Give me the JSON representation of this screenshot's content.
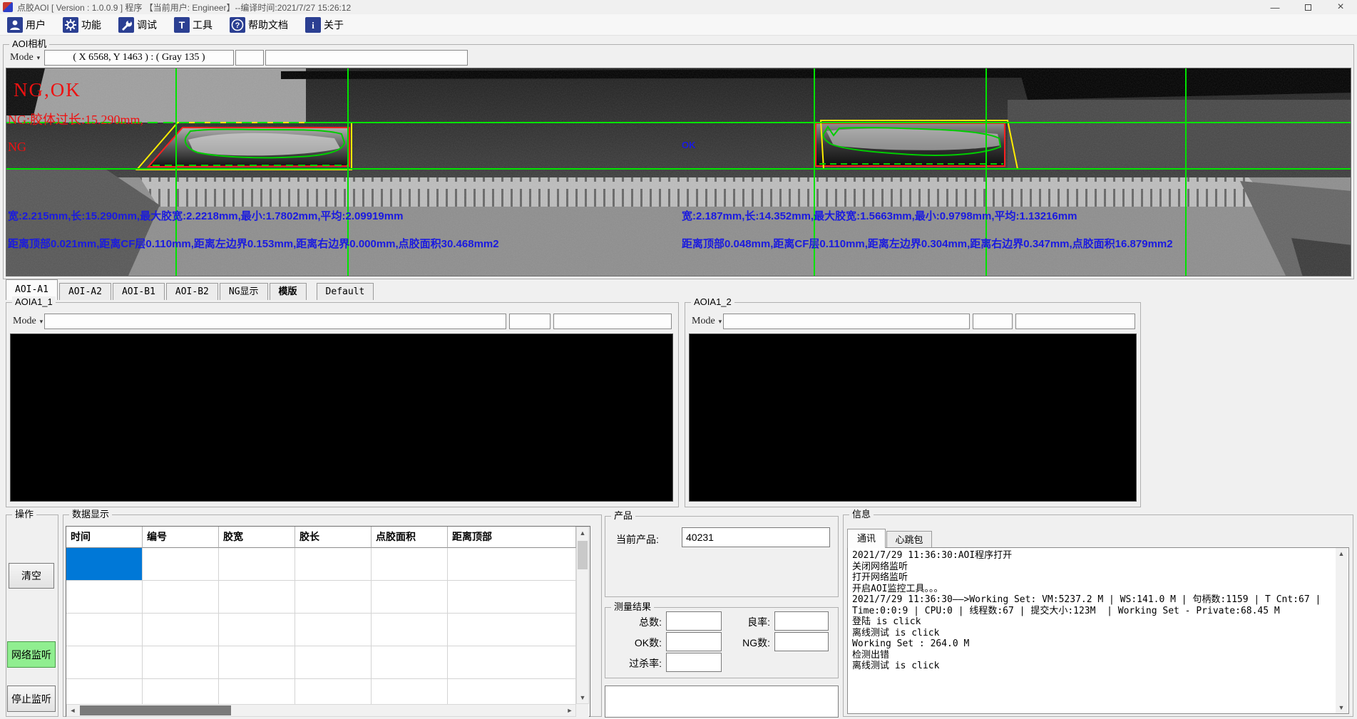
{
  "window": {
    "title": "点胶AOI [ Version : 1.0.0.9 ] 程序 【当前用户: Engineer】--编译时间:2021/7/27 15:26:12",
    "minimize_glyph": "—",
    "close_glyph": "×"
  },
  "icons": {
    "dropdown": "▾",
    "scroll_up": "▲",
    "scroll_down": "▼",
    "scroll_left": "◄",
    "scroll_right": "►"
  },
  "toolbar": {
    "items": [
      {
        "label": "用户",
        "icon": "user-icon"
      },
      {
        "label": "功能",
        "icon": "gear-icon"
      },
      {
        "label": "调试",
        "icon": "wrench-icon"
      },
      {
        "label": "工具",
        "icon": "tool-icon"
      },
      {
        "label": "帮助文档",
        "icon": "help-icon"
      },
      {
        "label": "关于",
        "icon": "about-icon"
      }
    ]
  },
  "camera": {
    "group_label": "AOI相机",
    "mode_label": "Mode",
    "coords_display": "( X 6568, Y 1463 ) : ( Gray 135 )",
    "overlay": {
      "result_text": "NG,OK",
      "ng_reason": "NG:胶体过长:15.290mm,",
      "ng_label": "NG",
      "ok_label": "OK",
      "left_stats_line1": "宽:2.215mm,长:15.290mm,最大胶宽:2.2218mm,最小:1.7802mm,平均:2.09919mm",
      "left_stats_line2": "距离顶部0.021mm,距离CF层0.110mm,距离左边界0.153mm,距离右边界0.000mm,点胶面积30.468mm2",
      "right_stats_line1": "宽:2.187mm,长:14.352mm,最大胶宽:1.5663mm,最小:0.9798mm,平均:1.13216mm",
      "right_stats_line2": "距离顶部0.048mm,距离CF层0.110mm,距离左边界0.304mm,距离右边界0.347mm,点胶面积16.879mm2"
    }
  },
  "view_tabs": [
    "AOI-A1",
    "AOI-A2",
    "AOI-B1",
    "AOI-B2",
    "NG显示",
    "模版",
    "Default"
  ],
  "panels": [
    {
      "label": "AOIA1_1",
      "mode_label": "Mode"
    },
    {
      "label": "AOIA1_2",
      "mode_label": "Mode"
    }
  ],
  "operation": {
    "group_label": "操作",
    "clear_label": "清空",
    "listen_label": "网络监听",
    "stop_label": "停止监听"
  },
  "data_table": {
    "group_label": "数据显示",
    "columns": [
      "时间",
      "编号",
      "胶宽",
      "胶长",
      "点胶面积",
      "距离顶部"
    ],
    "row_count": 5
  },
  "product": {
    "group_label": "产品",
    "current_label": "当前产品:",
    "value": "40231"
  },
  "results": {
    "group_label": "测量结果",
    "total_label": "总数:",
    "ok_label": "OK数:",
    "overkill_label": "过杀率:",
    "yield_label": "良率:",
    "ng_label": "NG数:"
  },
  "info": {
    "group_label": "信息",
    "tabs": [
      "通讯",
      "心跳包"
    ],
    "log_lines": [
      "2021/7/29 11:36:30:AOI程序打开",
      "关闭网络监听",
      "打开网络监听",
      "开启AOI监控工具。。。",
      "2021/7/29 11:36:30——>Working Set: VM:5237.2 M | WS:141.0 M | 句柄数:1159 | T Cnt:67 |",
      "Time:0:0:9 | CPU:0 | 线程数:67 | 提交大小:123M  | Working Set - Private:68.45 M",
      "登陆 is click",
      "离线测试 is click",
      "Working Set : 264.0 M",
      "检测出错",
      "离线测试 is click"
    ]
  },
  "colors": {
    "selection_blue": "#0078d7",
    "annotation_red": "#ee1111",
    "annotation_blue": "#1a1ae0",
    "crosshair_green": "#00e400",
    "roi_red": "#ff2020",
    "roi_yellow": "#ffee00",
    "glue_green": "#00cc00",
    "listen_button_green": "#90ee90"
  }
}
